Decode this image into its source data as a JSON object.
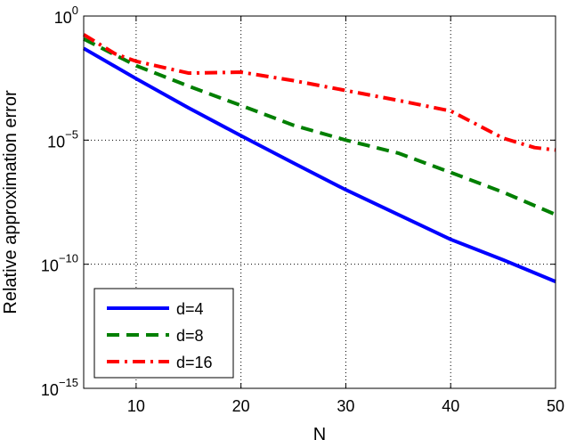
{
  "chart_data": {
    "type": "line",
    "title": "",
    "xlabel": "N",
    "ylabel": "Relative approximation error",
    "xlim": [
      5,
      50
    ],
    "ylim": [
      1e-15,
      1
    ],
    "yscale": "log",
    "grid": true,
    "legend_position": "bottom-left",
    "x_ticks": [
      10,
      20,
      30,
      40,
      50
    ],
    "y_ticks": [
      {
        "value": 1,
        "base": "10",
        "exp": "0"
      },
      {
        "value": 1e-05,
        "base": "10",
        "exp": "−5"
      },
      {
        "value": 1e-10,
        "base": "10",
        "exp": "−10"
      },
      {
        "value": 1e-15,
        "base": "10",
        "exp": "−15"
      }
    ],
    "series": [
      {
        "name": "d=4",
        "color": "#0000ff",
        "style": "solid",
        "x": [
          5,
          10,
          15,
          20,
          25,
          30,
          35,
          40,
          45,
          50
        ],
        "y": [
          0.05,
          0.003,
          0.0002,
          1.5e-05,
          1.2e-06,
          1e-07,
          1e-08,
          1e-09,
          1.5e-10,
          2e-11
        ]
      },
      {
        "name": "d=8",
        "color": "#007f00",
        "style": "dashed",
        "x": [
          5,
          10,
          15,
          20,
          25,
          30,
          35,
          40,
          45,
          50
        ],
        "y": [
          0.12,
          0.01,
          0.0015,
          0.00025,
          4e-05,
          1e-05,
          3e-06,
          5e-07,
          8e-08,
          1e-08
        ]
      },
      {
        "name": "d=16",
        "color": "#ff0000",
        "style": "dashdot",
        "x": [
          5,
          8,
          10,
          15,
          20,
          25,
          30,
          35,
          40,
          45,
          48,
          50
        ],
        "y": [
          0.18,
          0.03,
          0.015,
          0.005,
          0.0055,
          0.0025,
          0.001,
          0.0004,
          0.00015,
          1.2e-05,
          5e-06,
          4e-06
        ]
      }
    ]
  }
}
